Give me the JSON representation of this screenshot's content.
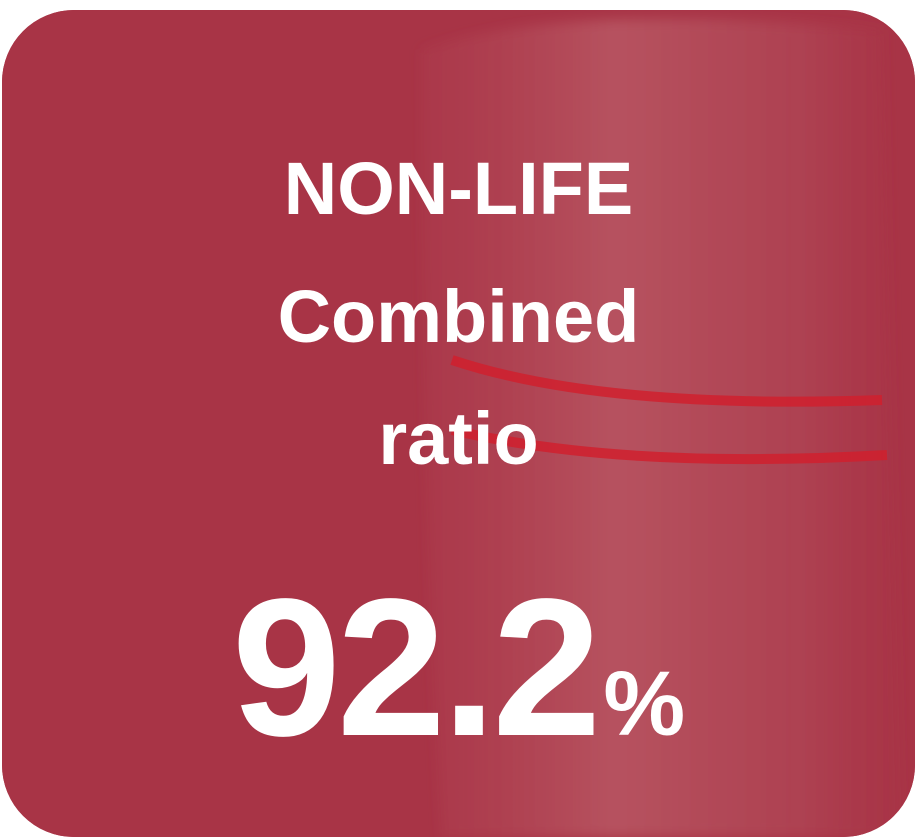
{
  "card": {
    "title_lines": [
      "NON-LIFE",
      "Combined",
      "ratio"
    ],
    "value": 92.2,
    "unit": "%"
  }
}
